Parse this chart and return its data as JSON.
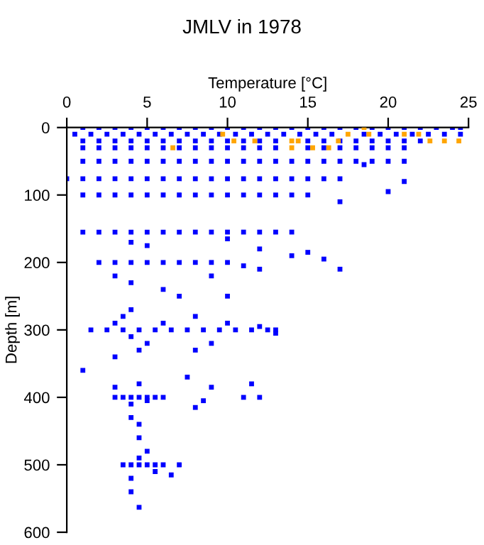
{
  "chart_data": {
    "type": "scatter",
    "title": "JMLV in 1978",
    "xlabel": "Temperature [°C]",
    "ylabel": "Depth [m]",
    "xlim": [
      0,
      25
    ],
    "xticks": [
      0,
      5,
      10,
      15,
      20,
      25
    ],
    "ylim": [
      600,
      0
    ],
    "yticks": [
      0,
      100,
      200,
      300,
      400,
      500,
      600
    ],
    "marker": "square",
    "series": [
      {
        "color": "#0000ff",
        "x": [
          1,
          2,
          3,
          4,
          5,
          6,
          7,
          8,
          9,
          10,
          11,
          12,
          13,
          14,
          15,
          16,
          17,
          18,
          19,
          20,
          21,
          22,
          23,
          24,
          24.5,
          0.5,
          1.5,
          2.5,
          3.5,
          4.5,
          5.5,
          6.5,
          7.5,
          8.5,
          9.5,
          10.5,
          11.5,
          12.5,
          13.5,
          14.5,
          15.5,
          16.5,
          17.5,
          18.5,
          19.5,
          20.5,
          21.5,
          22.5,
          23.5,
          24.5,
          1,
          2,
          3,
          4,
          5,
          6,
          7,
          8,
          9,
          10,
          11,
          12,
          13,
          14,
          15,
          16,
          17,
          18,
          19,
          20,
          21,
          22,
          1,
          2,
          3,
          4,
          5,
          6,
          7,
          8,
          9,
          10,
          11,
          12,
          13,
          14,
          15,
          16,
          17,
          18,
          19,
          20,
          21,
          1,
          2,
          3,
          4,
          5,
          6,
          7,
          8,
          9,
          10,
          11,
          12,
          13,
          14,
          15,
          16,
          17,
          18,
          19,
          20,
          21,
          0,
          1,
          2,
          3,
          4,
          5,
          6,
          7,
          8,
          9,
          10,
          11,
          12,
          13,
          14,
          15,
          16,
          17,
          1,
          2,
          3,
          4,
          5,
          6,
          7,
          8,
          9,
          10,
          11,
          12,
          13,
          14,
          15,
          21,
          20,
          17,
          18.5,
          1,
          2,
          3,
          4,
          5,
          6,
          7,
          8,
          9,
          10,
          11,
          12,
          13,
          14,
          4,
          5,
          10,
          12,
          14,
          16,
          17,
          15,
          2,
          3,
          4,
          5,
          6,
          7,
          8,
          9,
          10,
          3,
          4,
          9,
          11,
          12,
          6,
          7,
          10,
          1.5,
          2.5,
          3.5,
          4.5,
          5.5,
          6.5,
          7.5,
          8.5,
          9.5,
          10.5,
          11.5,
          12.5,
          13,
          3,
          4,
          5,
          3.5,
          4.5,
          3,
          6,
          8,
          10,
          12,
          13,
          9,
          8,
          4,
          1,
          3,
          3.5,
          4,
          4.5,
          5,
          5.5,
          6,
          4,
          5,
          3,
          4.5,
          7.5,
          9,
          11,
          11.5,
          12,
          8,
          8.5,
          3.5,
          4,
          4.5,
          5,
          5.5,
          6,
          7,
          4.5,
          5,
          4,
          5.5,
          6.5,
          4.5,
          4,
          4.5,
          4,
          4.5
        ],
        "values": [
          0,
          0,
          0,
          0,
          0,
          0,
          0,
          0,
          0,
          0,
          0,
          0,
          0,
          0,
          0,
          0,
          0,
          0,
          0,
          0,
          0,
          0,
          0,
          0,
          0,
          10,
          10,
          10,
          10,
          10,
          10,
          10,
          10,
          10,
          10,
          10,
          10,
          10,
          10,
          10,
          10,
          10,
          null,
          10,
          10,
          10,
          10,
          10,
          10,
          10,
          20,
          20,
          20,
          20,
          20,
          20,
          20,
          20,
          20,
          20,
          20,
          20,
          20,
          null,
          20,
          20,
          20,
          20,
          20,
          20,
          20,
          20,
          30,
          30,
          30,
          30,
          30,
          30,
          30,
          30,
          30,
          30,
          30,
          30,
          30,
          null,
          30,
          30,
          30,
          30,
          30,
          30,
          30,
          50,
          50,
          50,
          50,
          50,
          50,
          50,
          50,
          50,
          50,
          50,
          50,
          50,
          50,
          50,
          50,
          50,
          50,
          50,
          50,
          50,
          76,
          76,
          76,
          76,
          76,
          76,
          76,
          76,
          76,
          76,
          76,
          76,
          76,
          76,
          76,
          76,
          76,
          76,
          100,
          100,
          100,
          100,
          100,
          100,
          100,
          100,
          100,
          100,
          100,
          100,
          100,
          100,
          100,
          80,
          95,
          110,
          55,
          155,
          155,
          155,
          155,
          155,
          155,
          155,
          155,
          155,
          155,
          155,
          155,
          155,
          155,
          170,
          175,
          165,
          180,
          190,
          195,
          210,
          185,
          200,
          200,
          200,
          200,
          200,
          200,
          200,
          200,
          200,
          220,
          230,
          220,
          205,
          210,
          240,
          250,
          250,
          300,
          300,
          300,
          300,
          300,
          300,
          300,
          300,
          300,
          300,
          300,
          300,
          300,
          290,
          310,
          320,
          280,
          330,
          340,
          290,
          280,
          290,
          295,
          305,
          320,
          330,
          270,
          360,
          400,
          400,
          400,
          400,
          400,
          400,
          400,
          410,
          405,
          385,
          380,
          370,
          385,
          400,
          380,
          400,
          415,
          405,
          500,
          500,
          500,
          500,
          500,
          500,
          500,
          490,
          480,
          520,
          510,
          515,
          460,
          430,
          440,
          540,
          563
        ]
      },
      {
        "color": "#ffa500",
        "x": [
          18.5,
          9.7,
          17.5,
          18.8,
          21,
          21.9,
          10.4,
          11.7,
          14,
          14.4,
          16.9,
          22.6,
          23.5,
          24.4,
          6.6,
          14,
          15.3,
          16.3
        ],
        "values": [
          0,
          10,
          10,
          10,
          10,
          10,
          20,
          20,
          20,
          20,
          20,
          20,
          20,
          20,
          30,
          30,
          30,
          30
        ]
      }
    ]
  }
}
